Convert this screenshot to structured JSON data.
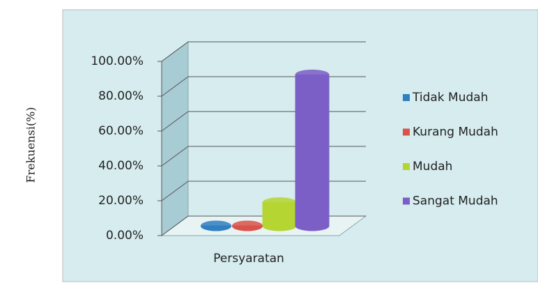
{
  "chart_data": {
    "type": "bar3d",
    "y_axis_label": "Frekuensi(%)",
    "categories": [
      "Persyaratan"
    ],
    "series": [
      {
        "name": "Tidak Mudah",
        "color": "#2f7fc1",
        "values": [
          0
        ]
      },
      {
        "name": "Kurang Mudah",
        "color": "#d9534a",
        "values": [
          0
        ]
      },
      {
        "name": "Mudah",
        "color": "#b4d532",
        "values": [
          13.33
        ]
      },
      {
        "name": "Sangat Mudah",
        "color": "#7b5fc7",
        "values": [
          86.67
        ]
      }
    ],
    "ylim": [
      0,
      100
    ],
    "yticks": [
      {
        "value": 0,
        "label": "0.00%"
      },
      {
        "value": 20,
        "label": "20.00%"
      },
      {
        "value": 40,
        "label": "40.00%"
      },
      {
        "value": 60,
        "label": "60.00%"
      },
      {
        "value": 80,
        "label": "80.00%"
      },
      {
        "value": 100,
        "label": "100.00%"
      }
    ],
    "grid": true,
    "legend": "right"
  }
}
